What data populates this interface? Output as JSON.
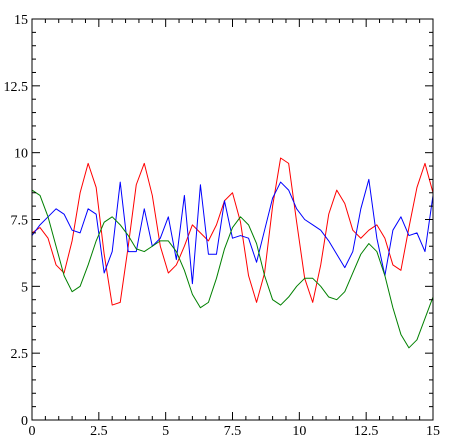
{
  "chart_data": {
    "type": "line",
    "title": "",
    "xlabel": "",
    "ylabel": "",
    "xlim": [
      0,
      15
    ],
    "ylim": [
      0,
      15
    ],
    "x_ticks": [
      0,
      2.5,
      5,
      7.5,
      10,
      12.5,
      15
    ],
    "x_tick_labels": [
      "0",
      "2.5",
      "5",
      "7.5",
      "10",
      "12.5",
      "15"
    ],
    "y_ticks": [
      0,
      2.5,
      5,
      7.5,
      10,
      12.5,
      15
    ],
    "y_tick_labels": [
      "0",
      "2.5",
      "5",
      "7.5",
      "10",
      "12.5",
      "15"
    ],
    "grid": false,
    "legend": "none",
    "series": [
      {
        "color": "#ff0000",
        "x": [
          0,
          0.3,
          0.6,
          0.9,
          1.2,
          1.5,
          1.8,
          2.1,
          2.4,
          2.7,
          3.0,
          3.3,
          3.6,
          3.9,
          4.2,
          4.5,
          4.8,
          5.1,
          5.4,
          5.7,
          6.0,
          6.3,
          6.6,
          6.9,
          7.2,
          7.5,
          7.8,
          8.1,
          8.4,
          8.7,
          9.0,
          9.3,
          9.6,
          9.9,
          10.2,
          10.5,
          10.8,
          11.1,
          11.4,
          11.7,
          12.0,
          12.3,
          12.6,
          12.9,
          13.2,
          13.5,
          13.8,
          14.1,
          14.4,
          14.7,
          15.0
        ],
        "values": [
          7.0,
          7.2,
          6.8,
          5.8,
          5.5,
          6.7,
          8.5,
          9.6,
          8.7,
          6.2,
          4.3,
          4.4,
          6.5,
          8.8,
          9.6,
          8.4,
          6.5,
          5.5,
          5.8,
          6.5,
          7.3,
          7.0,
          6.7,
          7.3,
          8.2,
          8.5,
          7.4,
          5.4,
          4.4,
          5.5,
          8.0,
          9.8,
          9.6,
          7.4,
          5.3,
          4.4,
          5.8,
          7.7,
          8.6,
          8.1,
          7.1,
          6.8,
          7.1,
          7.3,
          6.8,
          5.8,
          5.6,
          7.2,
          8.7,
          9.6,
          8.5
        ]
      },
      {
        "color": "#0000ff",
        "x": [
          0,
          0.3,
          0.6,
          0.9,
          1.2,
          1.5,
          1.8,
          2.1,
          2.4,
          2.7,
          3.0,
          3.3,
          3.6,
          3.9,
          4.2,
          4.5,
          4.8,
          5.1,
          5.4,
          5.7,
          6.0,
          6.3,
          6.6,
          6.9,
          7.2,
          7.5,
          7.8,
          8.1,
          8.4,
          8.7,
          9.0,
          9.3,
          9.6,
          9.9,
          10.2,
          10.5,
          10.8,
          11.1,
          11.4,
          11.7,
          12.0,
          12.3,
          12.6,
          12.9,
          13.2,
          13.5,
          13.8,
          14.1,
          14.4,
          14.7,
          15.0
        ],
        "values": [
          6.9,
          7.3,
          7.6,
          7.9,
          7.7,
          7.1,
          7.0,
          7.9,
          7.7,
          5.5,
          6.3,
          8.9,
          6.3,
          6.3,
          7.9,
          6.5,
          6.8,
          7.6,
          6.0,
          8.4,
          5.1,
          8.8,
          6.2,
          6.2,
          8.2,
          6.8,
          6.9,
          6.8,
          5.9,
          7.1,
          8.3,
          8.9,
          8.6,
          7.9,
          7.5,
          7.3,
          7.1,
          6.7,
          6.2,
          5.7,
          6.3,
          7.9,
          9.0,
          6.8,
          5.4,
          7.1,
          7.6,
          6.9,
          7.0,
          6.3,
          8.4
        ]
      },
      {
        "color": "#008000",
        "x": [
          0,
          0.3,
          0.6,
          0.9,
          1.2,
          1.5,
          1.8,
          2.1,
          2.4,
          2.7,
          3.0,
          3.3,
          3.6,
          3.9,
          4.2,
          4.5,
          4.8,
          5.1,
          5.4,
          5.7,
          6.0,
          6.3,
          6.6,
          6.9,
          7.2,
          7.5,
          7.8,
          8.1,
          8.4,
          8.7,
          9.0,
          9.3,
          9.6,
          9.9,
          10.2,
          10.5,
          10.8,
          11.1,
          11.4,
          11.7,
          12.0,
          12.3,
          12.6,
          12.9,
          13.2,
          13.5,
          13.8,
          14.1,
          14.4,
          14.7,
          15.0
        ],
        "values": [
          8.6,
          8.4,
          7.6,
          6.5,
          5.4,
          4.8,
          5.0,
          5.8,
          6.7,
          7.4,
          7.6,
          7.3,
          6.9,
          6.4,
          6.3,
          6.5,
          6.7,
          6.7,
          6.3,
          5.6,
          4.7,
          4.2,
          4.4,
          5.3,
          6.4,
          7.2,
          7.6,
          7.3,
          6.6,
          5.4,
          4.5,
          4.3,
          4.6,
          5.0,
          5.3,
          5.3,
          5.0,
          4.6,
          4.5,
          4.8,
          5.5,
          6.2,
          6.6,
          6.3,
          5.4,
          4.2,
          3.2,
          2.7,
          3.0,
          3.8,
          4.6
        ]
      }
    ]
  }
}
